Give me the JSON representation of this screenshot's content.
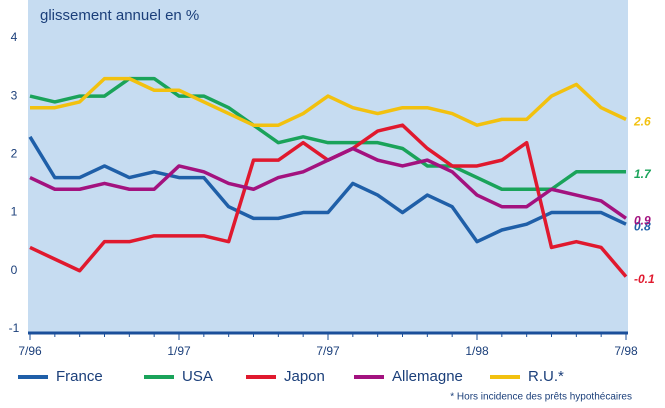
{
  "chart_data": {
    "type": "line",
    "title": "glissement annuel en %",
    "footnote": "* Hors incidence des prêts hypothécaires",
    "categories": [
      "7/96",
      null,
      null,
      null,
      null,
      null,
      "1/97",
      null,
      null,
      null,
      null,
      null,
      "7/97",
      null,
      null,
      null,
      null,
      null,
      "1/98",
      null,
      null,
      null,
      null,
      null,
      "7/98"
    ],
    "ylim": [
      -1,
      4.65
    ],
    "yticks": [
      -1,
      0,
      1,
      2,
      3,
      4
    ],
    "grid": false,
    "series": [
      {
        "name": "France",
        "color": "#1f5fa8",
        "values": [
          2.3,
          1.6,
          1.6,
          1.8,
          1.6,
          1.7,
          1.6,
          1.6,
          1.1,
          0.9,
          0.9,
          1.0,
          1.0,
          1.5,
          1.3,
          1.0,
          1.3,
          1.1,
          0.5,
          0.7,
          0.8,
          1.0,
          1.0,
          1.0,
          0.8
        ]
      },
      {
        "name": "USA",
        "color": "#1aa35a",
        "values": [
          3.0,
          2.9,
          3.0,
          3.0,
          3.3,
          3.3,
          3.0,
          3.0,
          2.8,
          2.5,
          2.2,
          2.3,
          2.2,
          2.2,
          2.2,
          2.1,
          1.8,
          1.8,
          1.6,
          1.4,
          1.4,
          1.4,
          1.7,
          1.7,
          1.7
        ]
      },
      {
        "name": "Japon",
        "color": "#e0192e",
        "values": [
          0.4,
          0.2,
          0.0,
          0.5,
          0.5,
          0.6,
          0.6,
          0.6,
          0.5,
          1.9,
          1.9,
          2.2,
          1.9,
          2.1,
          2.4,
          2.5,
          2.1,
          1.8,
          1.8,
          1.9,
          2.2,
          0.4,
          0.5,
          0.4,
          -0.1
        ]
      },
      {
        "name": "Allemagne",
        "color": "#a3127f",
        "values": [
          1.6,
          1.4,
          1.4,
          1.5,
          1.4,
          1.4,
          1.8,
          1.7,
          1.5,
          1.4,
          1.6,
          1.7,
          1.9,
          2.1,
          1.9,
          1.8,
          1.9,
          1.7,
          1.3,
          1.1,
          1.1,
          1.4,
          1.3,
          1.2,
          0.9
        ]
      },
      {
        "name": "R.U.*",
        "color": "#f2c10f",
        "values": [
          2.8,
          2.8,
          2.9,
          3.3,
          3.3,
          3.1,
          3.1,
          2.9,
          2.7,
          2.5,
          2.5,
          2.7,
          3.0,
          2.8,
          2.7,
          2.8,
          2.8,
          2.7,
          2.5,
          2.6,
          2.6,
          3.0,
          3.2,
          2.8,
          2.6
        ]
      }
    ]
  }
}
